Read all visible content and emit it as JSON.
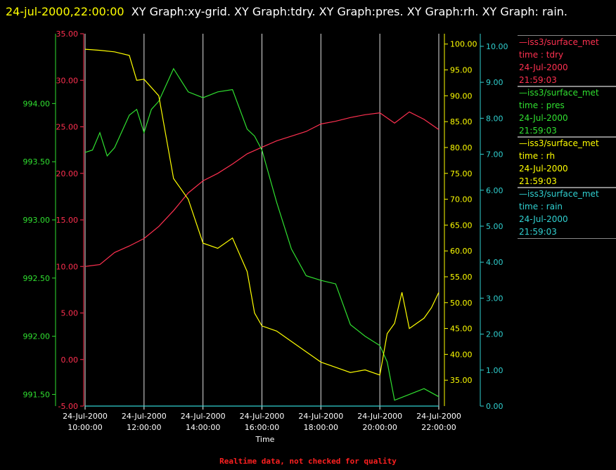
{
  "header": {
    "timestamp": "24-jul-2000,22:00:00",
    "graphs": "XY Graph:xy-grid.  XY Graph:tdry.  XY Graph:pres.  XY Graph:rh.  XY Graph: rain."
  },
  "footer": "Realtime data, not checked for quality",
  "colors": {
    "tdry": "#ff3050",
    "pres": "#30e030",
    "rh": "#ffff00",
    "rain": "#30d0d0",
    "grid": "#e0e0e0"
  },
  "legend": [
    {
      "name": "—iss3/surface_met",
      "field": "time : tdry",
      "date": "24-Jul-2000",
      "time": "21:59:03",
      "color": "#ff3050"
    },
    {
      "name": "—iss3/surface_met",
      "field": "time : pres",
      "date": "24-Jul-2000",
      "time": "21:59:03",
      "color": "#30e030"
    },
    {
      "name": "—iss3/surface_met",
      "field": "time : rh",
      "date": "24-Jul-2000",
      "time": "21:59:03",
      "color": "#ffff00"
    },
    {
      "name": "—iss3/surface_met",
      "field": "time : rain",
      "date": "24-Jul-2000",
      "time": "21:59:03",
      "color": "#30d0d0"
    }
  ],
  "chart_data": {
    "type": "line",
    "xlabel": "Time",
    "x_ticks": [
      {
        "date": "24-Jul-2000",
        "time": "10:00:00"
      },
      {
        "date": "24-Jul-2000",
        "time": "12:00:00"
      },
      {
        "date": "24-Jul-2000",
        "time": "14:00:00"
      },
      {
        "date": "24-Jul-2000",
        "time": "16:00:00"
      },
      {
        "date": "24-Jul-2000",
        "time": "18:00:00"
      },
      {
        "date": "24-Jul-2000",
        "time": "20:00:00"
      },
      {
        "date": "24-Jul-2000",
        "time": "22:00:00"
      }
    ],
    "xlim": [
      "10:00",
      "22:00"
    ],
    "grid": "vertical",
    "axes": {
      "tdry": {
        "ylim": [
          -5,
          35
        ],
        "ticks": [
          "-5.00",
          "0.00",
          "5.00",
          "10.00",
          "15.00",
          "20.00",
          "25.00",
          "30.00",
          "35.00"
        ]
      },
      "pres": {
        "ylim": [
          991.4,
          994.6
        ],
        "ticks": [
          "991.50",
          "992.00",
          "992.50",
          "993.00",
          "993.50",
          "994.00"
        ]
      },
      "rh": {
        "ylim": [
          30,
          102
        ],
        "ticks": [
          "35.00",
          "40.00",
          "45.00",
          "50.00",
          "55.00",
          "60.00",
          "65.00",
          "70.00",
          "75.00",
          "80.00",
          "85.00",
          "90.00",
          "95.00",
          "100.00"
        ]
      },
      "rain": {
        "ylim": [
          0,
          10.35
        ],
        "ticks": [
          "0.00",
          "1.00",
          "2.00",
          "3.00",
          "4.00",
          "5.00",
          "6.00",
          "7.00",
          "8.00",
          "9.00",
          "10.00"
        ]
      }
    },
    "series": [
      {
        "name": "tdry",
        "axis": "tdry",
        "x": [
          "10:00",
          "10:30",
          "11:00",
          "11:30",
          "12:00",
          "12:30",
          "13:00",
          "13:30",
          "14:00",
          "14:30",
          "15:00",
          "15:30",
          "16:00",
          "16:30",
          "17:00",
          "17:30",
          "18:00",
          "18:30",
          "19:00",
          "19:30",
          "20:00",
          "20:30",
          "21:00",
          "21:30",
          "22:00"
        ],
        "values": [
          10.0,
          10.2,
          11.5,
          12.2,
          13.0,
          14.3,
          16.0,
          17.9,
          19.2,
          20.0,
          21.0,
          22.1,
          22.8,
          23.5,
          24.0,
          24.5,
          25.3,
          25.6,
          26.0,
          26.3,
          26.5,
          25.4,
          26.6,
          25.8,
          24.7
        ]
      },
      {
        "name": "pres",
        "axis": "pres",
        "x": [
          "10:00",
          "10:15",
          "10:30",
          "10:45",
          "11:00",
          "11:30",
          "11:45",
          "12:00",
          "12:15",
          "12:30",
          "13:00",
          "13:30",
          "14:00",
          "14:30",
          "15:00",
          "15:30",
          "15:45",
          "16:00",
          "16:30",
          "17:00",
          "17:30",
          "18:00",
          "18:30",
          "19:00",
          "19:30",
          "20:00",
          "20:15",
          "20:30",
          "21:00",
          "21:30",
          "22:00"
        ],
        "values": [
          993.58,
          993.6,
          993.75,
          993.55,
          993.62,
          993.9,
          993.95,
          993.75,
          993.95,
          994.02,
          994.3,
          994.1,
          994.05,
          994.1,
          994.12,
          993.78,
          993.72,
          993.6,
          993.15,
          992.75,
          992.52,
          992.48,
          992.45,
          992.1,
          992.0,
          991.92,
          991.78,
          991.45,
          991.5,
          991.55,
          991.48
        ]
      },
      {
        "name": "rh",
        "axis": "rh",
        "x": [
          "10:00",
          "10:30",
          "11:00",
          "11:30",
          "11:45",
          "12:00",
          "12:30",
          "12:45",
          "13:00",
          "13:30",
          "14:00",
          "14:30",
          "15:00",
          "15:30",
          "15:45",
          "16:00",
          "16:30",
          "17:00",
          "17:30",
          "18:00",
          "18:30",
          "19:00",
          "19:30",
          "20:00",
          "20:15",
          "20:30",
          "20:45",
          "21:00",
          "21:30",
          "21:45",
          "22:00"
        ],
        "values": [
          99.0,
          98.8,
          98.5,
          97.8,
          93.0,
          93.2,
          90.0,
          82.0,
          74.0,
          70.0,
          61.5,
          60.5,
          62.5,
          56.0,
          48.0,
          45.5,
          44.5,
          42.5,
          40.5,
          38.5,
          37.5,
          36.5,
          37.0,
          36.0,
          44.0,
          46.0,
          52.0,
          45.0,
          47.0,
          49.0,
          52.0
        ]
      },
      {
        "name": "rain",
        "axis": "rain",
        "x": [
          "10:00",
          "22:00"
        ],
        "values": [
          0.0,
          0.0
        ]
      }
    ]
  }
}
